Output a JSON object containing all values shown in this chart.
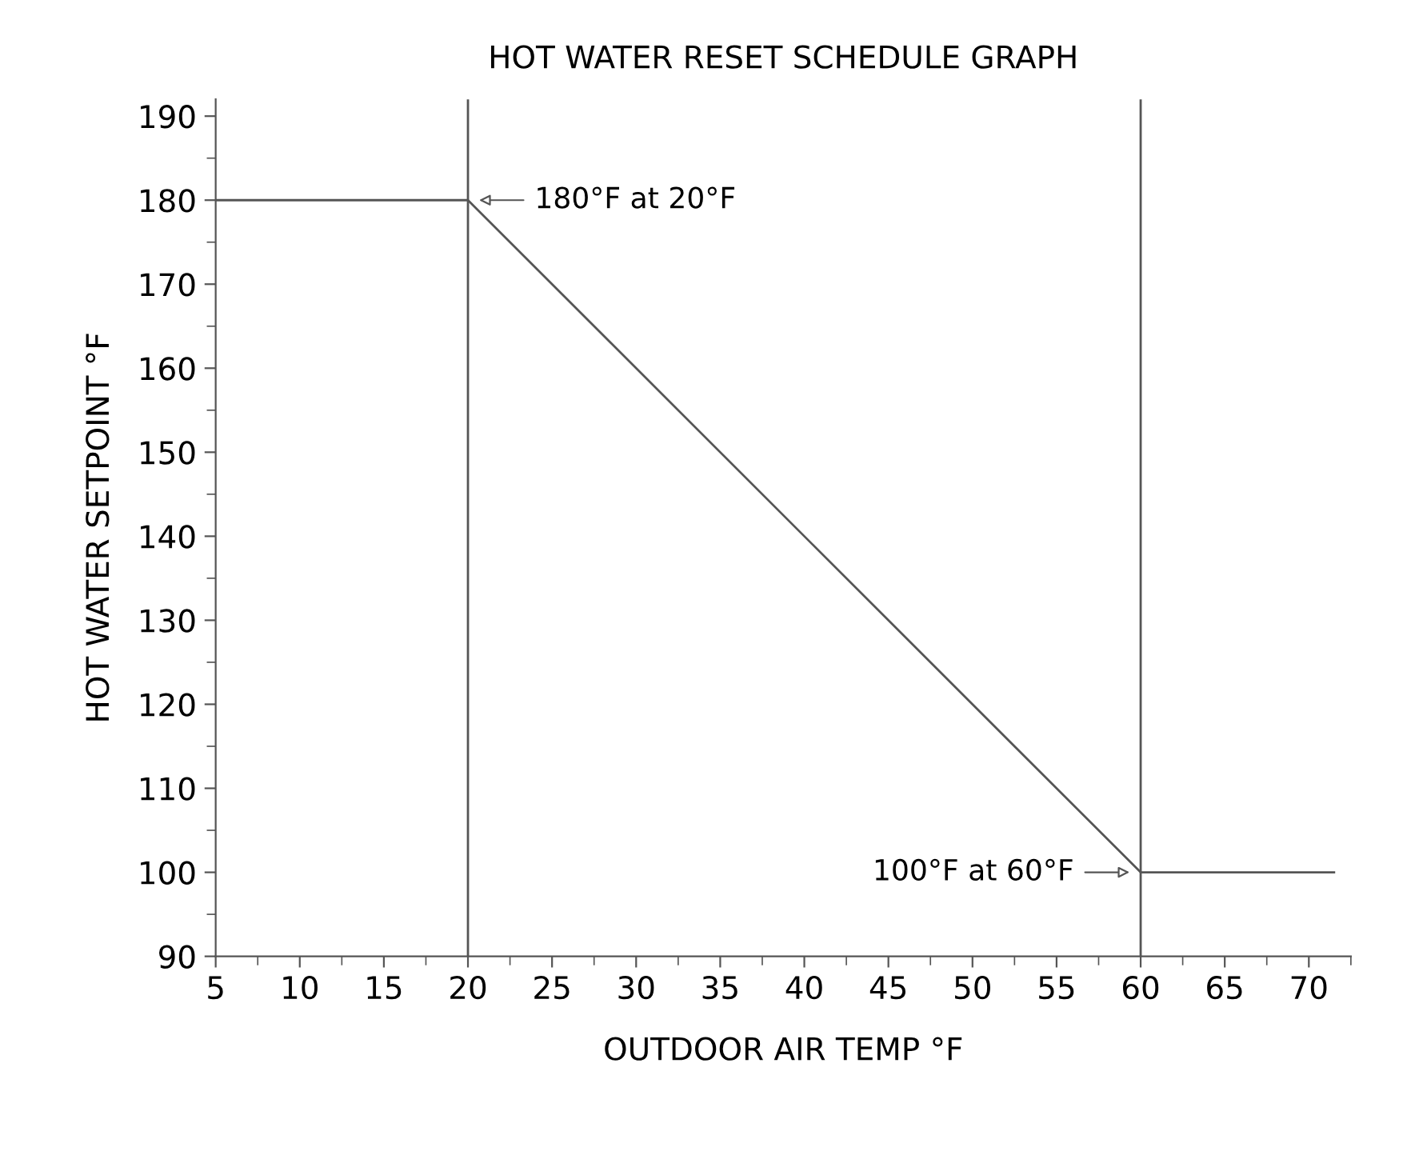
{
  "chart_data": {
    "type": "line",
    "title": "HOT WATER RESET SCHEDULE GRAPH",
    "xlabel": "OUTDOOR AIR TEMP °F",
    "ylabel": "HOT WATER SETPOINT °F",
    "x": [
      5,
      20,
      60,
      71.5
    ],
    "series": [
      {
        "color": "#555555",
        "values": [
          180,
          180,
          100,
          100
        ]
      }
    ],
    "xlim": [
      5,
      72.5
    ],
    "ylim": [
      90,
      192
    ],
    "xticks": [
      5,
      10,
      15,
      20,
      25,
      30,
      35,
      40,
      45,
      50,
      55,
      60,
      65,
      70
    ],
    "yticks": [
      90,
      100,
      110,
      120,
      130,
      140,
      150,
      160,
      170,
      180,
      190
    ],
    "ref_lines": [
      {
        "axis": "x",
        "value": 20,
        "color": "#555555"
      },
      {
        "axis": "x",
        "value": 60,
        "color": "#555555"
      }
    ],
    "annotations": [
      {
        "text": "180°F at 20°F",
        "x": 20,
        "y": 180
      },
      {
        "text": "100°F at 60°F",
        "x": 60,
        "y": 100
      }
    ],
    "grid": false,
    "legend": false,
    "marker": "none",
    "line_style": "solid"
  }
}
